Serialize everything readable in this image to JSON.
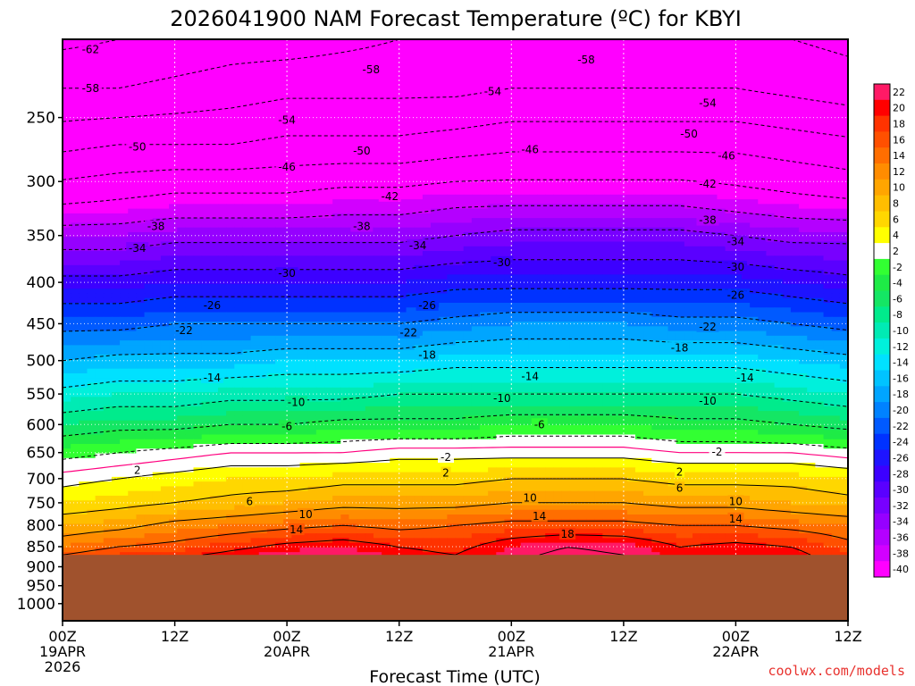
{
  "chart_data": {
    "type": "heatmap",
    "title": "2026041900 NAM Forecast Temperature (ºC) for KBYI",
    "xlabel": "Forecast Time (UTC)",
    "credit": "coolwx.com/models",
    "x_range_hours": [
      0,
      84
    ],
    "y_range_hpa": [
      200,
      1050
    ],
    "y_scale": "log",
    "ground_pressure_hpa": 870,
    "ground_color": "#a0522d",
    "y_ticks": [
      250,
      300,
      350,
      400,
      450,
      500,
      550,
      600,
      650,
      700,
      750,
      800,
      850,
      900,
      950,
      1000
    ],
    "x_ticks": [
      {
        "hour": 0,
        "lines": [
          "00Z",
          "19APR",
          "2026"
        ]
      },
      {
        "hour": 12,
        "lines": [
          "12Z"
        ]
      },
      {
        "hour": 24,
        "lines": [
          "00Z",
          "20APR"
        ]
      },
      {
        "hour": 36,
        "lines": [
          "12Z"
        ]
      },
      {
        "hour": 48,
        "lines": [
          "00Z",
          "21APR"
        ]
      },
      {
        "hour": 60,
        "lines": [
          "12Z"
        ]
      },
      {
        "hour": 72,
        "lines": [
          "00Z",
          "22APR"
        ]
      },
      {
        "hour": 84,
        "lines": [
          "12Z"
        ]
      }
    ],
    "hours": [
      0,
      6,
      12,
      18,
      24,
      30,
      36,
      42,
      48,
      54,
      60,
      66,
      72,
      78,
      84
    ],
    "levels": [
      {
        "p": 200,
        "t": [
          -63,
          -62,
          -61,
          -60,
          -60,
          -59,
          -58,
          -58,
          -58,
          -58,
          -57,
          -57,
          -57,
          -58,
          -59
        ]
      },
      {
        "p": 230,
        "t": [
          -58,
          -58,
          -57,
          -56,
          -55,
          -55,
          -55,
          -55,
          -54,
          -54,
          -54,
          -54,
          -54,
          -55,
          -56
        ]
      },
      {
        "p": 270,
        "t": [
          -51,
          -50,
          -50,
          -50,
          -49,
          -49,
          -49,
          -48,
          -47,
          -47,
          -47,
          -47,
          -47,
          -48,
          -49
        ]
      },
      {
        "p": 310,
        "t": [
          -44,
          -43,
          -42,
          -42,
          -42,
          -41,
          -41,
          -40,
          -40,
          -40,
          -40,
          -40,
          -41,
          -42,
          -43
        ]
      },
      {
        "p": 350,
        "t": [
          -36,
          -36,
          -35,
          -35,
          -35,
          -35,
          -35,
          -34,
          -33,
          -33,
          -33,
          -33,
          -34,
          -35,
          -35
        ]
      },
      {
        "p": 400,
        "t": [
          -29,
          -29,
          -28,
          -28,
          -28,
          -28,
          -28,
          -27,
          -27,
          -27,
          -27,
          -27,
          -27,
          -28,
          -29
        ]
      },
      {
        "p": 450,
        "t": [
          -23,
          -23,
          -22,
          -22,
          -22,
          -22,
          -22,
          -21,
          -20,
          -20,
          -20,
          -21,
          -21,
          -22,
          -23
        ]
      },
      {
        "p": 500,
        "t": [
          -18,
          -17,
          -17,
          -17,
          -16,
          -16,
          -16,
          -15,
          -15,
          -15,
          -15,
          -15,
          -15,
          -16,
          -17
        ]
      },
      {
        "p": 550,
        "t": [
          -13,
          -12,
          -12,
          -11,
          -11,
          -11,
          -10,
          -10,
          -10,
          -10,
          -10,
          -10,
          -10,
          -11,
          -12
        ]
      },
      {
        "p": 600,
        "t": [
          -8,
          -7,
          -7,
          -6,
          -6,
          -5,
          -5,
          -5,
          -4,
          -4,
          -4,
          -5,
          -5,
          -6,
          -7
        ]
      },
      {
        "p": 650,
        "t": [
          -3,
          -2,
          -1,
          0,
          0,
          0,
          1,
          1,
          1,
          1,
          1,
          0,
          0,
          0,
          -1
        ]
      },
      {
        "p": 700,
        "t": [
          1,
          2,
          3,
          4,
          4,
          5,
          5,
          5,
          6,
          6,
          6,
          5,
          5,
          5,
          4
        ]
      },
      {
        "p": 750,
        "t": [
          4,
          5,
          6,
          7,
          8,
          9,
          9,
          9,
          10,
          10,
          10,
          9,
          9,
          8,
          7
        ]
      },
      {
        "p": 800,
        "t": [
          8,
          9,
          11,
          12,
          13,
          14,
          13,
          14,
          15,
          15,
          15,
          14,
          14,
          13,
          12
        ]
      },
      {
        "p": 850,
        "t": [
          12,
          14,
          15,
          17,
          19,
          20,
          18,
          17,
          20,
          22,
          21,
          18,
          19,
          18,
          15
        ]
      },
      {
        "p": 870,
        "t": [
          14,
          16,
          17,
          19,
          21,
          22,
          19,
          18,
          21,
          23,
          22,
          19,
          20,
          19,
          16
        ]
      }
    ],
    "colorbar": [
      {
        "min": 20,
        "max": 22,
        "color": "#ff1a66",
        "label": "22"
      },
      {
        "min": 18,
        "max": 20,
        "color": "#ff0000",
        "label": "20"
      },
      {
        "min": 16,
        "max": 18,
        "color": "#ff3300",
        "label": "18"
      },
      {
        "min": 14,
        "max": 16,
        "color": "#ff5000",
        "label": "16"
      },
      {
        "min": 12,
        "max": 14,
        "color": "#ff6e00",
        "label": "14"
      },
      {
        "min": 10,
        "max": 12,
        "color": "#ff8c00",
        "label": "12"
      },
      {
        "min": 8,
        "max": 10,
        "color": "#ffa500",
        "label": "10"
      },
      {
        "min": 6,
        "max": 8,
        "color": "#ffbe00",
        "label": "8"
      },
      {
        "min": 4,
        "max": 6,
        "color": "#ffd700",
        "label": "6"
      },
      {
        "min": 2,
        "max": 4,
        "color": "#ffff00",
        "label": "4"
      },
      {
        "min": -2,
        "max": 2,
        "color": "#ffffff",
        "label": "2"
      },
      {
        "min": -4,
        "max": -2,
        "color": "#32ff32",
        "label": "-2"
      },
      {
        "min": -6,
        "max": -4,
        "color": "#1eeb46",
        "label": "-4"
      },
      {
        "min": -8,
        "max": -6,
        "color": "#14e664",
        "label": "-6"
      },
      {
        "min": -10,
        "max": -8,
        "color": "#00eb8c",
        "label": "-8"
      },
      {
        "min": -12,
        "max": -10,
        "color": "#00ebb4",
        "label": "-10"
      },
      {
        "min": -14,
        "max": -12,
        "color": "#00f0dc",
        "label": "-12"
      },
      {
        "min": -16,
        "max": -14,
        "color": "#00e1ff",
        "label": "-14"
      },
      {
        "min": -18,
        "max": -16,
        "color": "#00c3ff",
        "label": "-16"
      },
      {
        "min": -20,
        "max": -18,
        "color": "#00a5ff",
        "label": "-18"
      },
      {
        "min": -22,
        "max": -20,
        "color": "#0082ff",
        "label": "-20"
      },
      {
        "min": -24,
        "max": -22,
        "color": "#005aff",
        "label": "-22"
      },
      {
        "min": -26,
        "max": -24,
        "color": "#0032ff",
        "label": "-24"
      },
      {
        "min": -28,
        "max": -26,
        "color": "#1e14ff",
        "label": "-26"
      },
      {
        "min": -30,
        "max": -28,
        "color": "#3c00ff",
        "label": "-28"
      },
      {
        "min": -32,
        "max": -30,
        "color": "#5a00ff",
        "label": "-30"
      },
      {
        "min": -34,
        "max": -32,
        "color": "#7800ff",
        "label": "-32"
      },
      {
        "min": -36,
        "max": -34,
        "color": "#9600ff",
        "label": "-34"
      },
      {
        "min": -38,
        "max": -36,
        "color": "#b400ff",
        "label": "-36"
      },
      {
        "min": -40,
        "max": -38,
        "color": "#d200ff",
        "label": "-38"
      },
      {
        "min": -64,
        "max": -40,
        "color": "#ff00ff",
        "label": "-40"
      }
    ],
    "contour_labels": [
      {
        "text": "-62",
        "hour": 3,
        "p": 206
      },
      {
        "text": "-58",
        "hour": 3,
        "p": 230
      },
      {
        "text": "-58",
        "hour": 33,
        "p": 218
      },
      {
        "text": "-58",
        "hour": 56,
        "p": 212
      },
      {
        "text": "-54",
        "hour": 46,
        "p": 232
      },
      {
        "text": "-54",
        "hour": 24,
        "p": 252
      },
      {
        "text": "-54",
        "hour": 69,
        "p": 240
      },
      {
        "text": "-50",
        "hour": 8,
        "p": 272
      },
      {
        "text": "-50",
        "hour": 32,
        "p": 275
      },
      {
        "text": "-50",
        "hour": 67,
        "p": 262
      },
      {
        "text": "-46",
        "hour": 24,
        "p": 288
      },
      {
        "text": "-46",
        "hour": 50,
        "p": 274
      },
      {
        "text": "-46",
        "hour": 71,
        "p": 279
      },
      {
        "text": "-42",
        "hour": 35,
        "p": 313
      },
      {
        "text": "-42",
        "hour": 69,
        "p": 302
      },
      {
        "text": "-38",
        "hour": 10,
        "p": 341
      },
      {
        "text": "-38",
        "hour": 32,
        "p": 341
      },
      {
        "text": "-38",
        "hour": 69,
        "p": 335
      },
      {
        "text": "-34",
        "hour": 8,
        "p": 363
      },
      {
        "text": "-34",
        "hour": 38,
        "p": 360
      },
      {
        "text": "-34",
        "hour": 72,
        "p": 356
      },
      {
        "text": "-30",
        "hour": 24,
        "p": 390
      },
      {
        "text": "-30",
        "hour": 47,
        "p": 378
      },
      {
        "text": "-30",
        "hour": 72,
        "p": 383
      },
      {
        "text": "-26",
        "hour": 16,
        "p": 427
      },
      {
        "text": "-26",
        "hour": 39,
        "p": 427
      },
      {
        "text": "-26",
        "hour": 72,
        "p": 415
      },
      {
        "text": "-22",
        "hour": 13,
        "p": 459
      },
      {
        "text": "-22",
        "hour": 37,
        "p": 462
      },
      {
        "text": "-22",
        "hour": 69,
        "p": 454
      },
      {
        "text": "-18",
        "hour": 39,
        "p": 492
      },
      {
        "text": "-18",
        "hour": 66,
        "p": 482
      },
      {
        "text": "-14",
        "hour": 16,
        "p": 525
      },
      {
        "text": "-14",
        "hour": 50,
        "p": 523
      },
      {
        "text": "-14",
        "hour": 73,
        "p": 525
      },
      {
        "text": "-10",
        "hour": 25,
        "p": 563
      },
      {
        "text": "-10",
        "hour": 47,
        "p": 557
      },
      {
        "text": "-10",
        "hour": 69,
        "p": 561
      },
      {
        "text": "-6",
        "hour": 24,
        "p": 603
      },
      {
        "text": "-6",
        "hour": 51,
        "p": 600
      },
      {
        "text": "-2",
        "hour": 41,
        "p": 659
      },
      {
        "text": "-2",
        "hour": 70,
        "p": 649
      },
      {
        "text": "2",
        "hour": 8,
        "p": 684
      },
      {
        "text": "2",
        "hour": 41,
        "p": 689
      },
      {
        "text": "2",
        "hour": 66,
        "p": 687
      },
      {
        "text": "6",
        "hour": 20,
        "p": 747
      },
      {
        "text": "6",
        "hour": 66,
        "p": 719
      },
      {
        "text": "10",
        "hour": 26,
        "p": 775
      },
      {
        "text": "10",
        "hour": 50,
        "p": 740
      },
      {
        "text": "10",
        "hour": 72,
        "p": 747
      },
      {
        "text": "14",
        "hour": 25,
        "p": 810
      },
      {
        "text": "14",
        "hour": 51,
        "p": 779
      },
      {
        "text": "14",
        "hour": 72,
        "p": 785
      },
      {
        "text": "18",
        "hour": 54,
        "p": 820
      }
    ]
  }
}
